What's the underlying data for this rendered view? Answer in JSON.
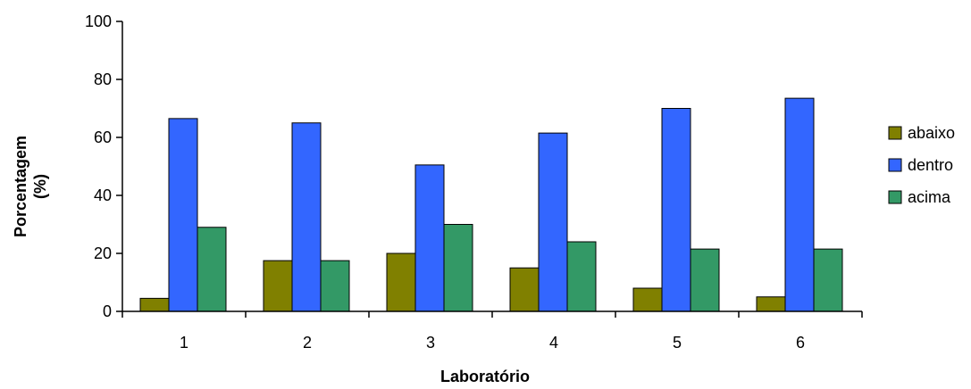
{
  "chart_data": {
    "type": "bar",
    "title": "",
    "xlabel": "Laboratório",
    "ylabel_lines": [
      "Porcentagem",
      "(%)"
    ],
    "categories": [
      "1",
      "2",
      "3",
      "4",
      "5",
      "6"
    ],
    "ylim": [
      0,
      100
    ],
    "yticks": [
      "0",
      "20",
      "40",
      "60",
      "80",
      "100"
    ],
    "grid": false,
    "legend_position": "right",
    "series": [
      {
        "name": "abaixo",
        "color": "#808000",
        "values": [
          4.5,
          17.5,
          20,
          15,
          8,
          5
        ]
      },
      {
        "name": "dentro",
        "color": "#3366ff",
        "values": [
          66.5,
          65,
          50.5,
          61.5,
          70,
          73.5
        ]
      },
      {
        "name": "acima",
        "color": "#339966",
        "values": [
          29,
          17.5,
          30,
          24,
          21.5,
          21.5
        ]
      }
    ]
  }
}
